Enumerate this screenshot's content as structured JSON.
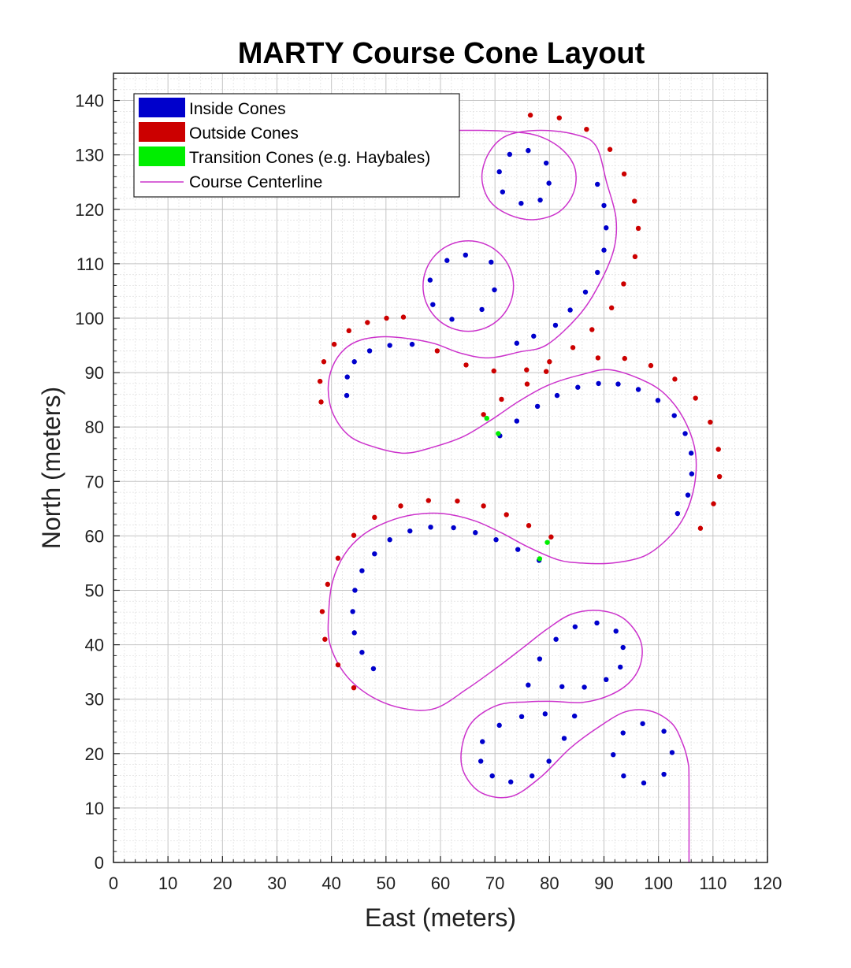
{
  "chart_data": {
    "type": "scatter",
    "title": "MARTY Course Cone Layout",
    "xlabel": "East (meters)",
    "ylabel": "North (meters)",
    "xlim": [
      0,
      120
    ],
    "ylim": [
      0,
      145
    ],
    "xticks": [
      0,
      10,
      20,
      30,
      40,
      50,
      60,
      70,
      80,
      90,
      100,
      110,
      120
    ],
    "yticks": [
      0,
      10,
      20,
      30,
      40,
      50,
      60,
      70,
      80,
      90,
      100,
      110,
      120,
      130,
      140
    ],
    "grid": "major and minor",
    "legend_position": "top-left",
    "colors": {
      "inside": "#0000cc",
      "outside": "#cc0000",
      "transition": "#00ee00",
      "centerline": "#cc33cc"
    },
    "series": [
      {
        "name": "Inside Cones",
        "marker": "dot",
        "points": [
          [
            70.8,
            126.9
          ],
          [
            72.7,
            130.1
          ],
          [
            76.1,
            130.8
          ],
          [
            79.4,
            128.5
          ],
          [
            79.9,
            124.8
          ],
          [
            78.3,
            121.7
          ],
          [
            74.8,
            121.1
          ],
          [
            71.4,
            123.2
          ],
          [
            64.6,
            111.6
          ],
          [
            61.2,
            110.6
          ],
          [
            58.1,
            107.0
          ],
          [
            58.6,
            102.5
          ],
          [
            62.1,
            99.8
          ],
          [
            67.6,
            101.6
          ],
          [
            69.9,
            105.2
          ],
          [
            69.3,
            110.3
          ],
          [
            88.8,
            124.6
          ],
          [
            90.0,
            120.7
          ],
          [
            90.4,
            116.6
          ],
          [
            90.0,
            112.5
          ],
          [
            88.8,
            108.4
          ],
          [
            86.6,
            104.8
          ],
          [
            83.8,
            101.5
          ],
          [
            81.1,
            98.7
          ],
          [
            77.1,
            96.7
          ],
          [
            74.0,
            95.4
          ],
          [
            54.8,
            95.2
          ],
          [
            50.7,
            95.0
          ],
          [
            47.0,
            94.0
          ],
          [
            44.2,
            92.0
          ],
          [
            42.9,
            89.2
          ],
          [
            42.8,
            85.8
          ],
          [
            70.9,
            78.4
          ],
          [
            74.0,
            81.1
          ],
          [
            77.8,
            83.8
          ],
          [
            81.4,
            85.8
          ],
          [
            85.2,
            87.3
          ],
          [
            89.0,
            88.0
          ],
          [
            92.6,
            87.9
          ],
          [
            96.3,
            86.9
          ],
          [
            99.9,
            84.9
          ],
          [
            102.9,
            82.1
          ],
          [
            104.9,
            78.8
          ],
          [
            106.0,
            75.2
          ],
          [
            106.1,
            71.4
          ],
          [
            105.4,
            67.5
          ],
          [
            103.5,
            64.1
          ],
          [
            78.1,
            55.5
          ],
          [
            74.2,
            57.5
          ],
          [
            70.2,
            59.3
          ],
          [
            66.4,
            60.6
          ],
          [
            62.4,
            61.5
          ],
          [
            58.2,
            61.6
          ],
          [
            54.4,
            60.9
          ],
          [
            50.7,
            59.3
          ],
          [
            47.9,
            56.7
          ],
          [
            45.6,
            53.6
          ],
          [
            44.3,
            50.0
          ],
          [
            43.9,
            46.1
          ],
          [
            44.2,
            42.2
          ],
          [
            45.6,
            38.6
          ],
          [
            47.7,
            35.6
          ],
          [
            78.2,
            37.4
          ],
          [
            81.2,
            41.0
          ],
          [
            84.7,
            43.3
          ],
          [
            88.7,
            44.0
          ],
          [
            92.2,
            42.5
          ],
          [
            93.5,
            39.5
          ],
          [
            93.0,
            35.9
          ],
          [
            90.4,
            33.6
          ],
          [
            86.4,
            32.2
          ],
          [
            82.3,
            32.3
          ],
          [
            76.1,
            32.6
          ],
          [
            79.2,
            27.3
          ],
          [
            84.6,
            26.9
          ],
          [
            74.9,
            26.8
          ],
          [
            70.8,
            25.2
          ],
          [
            67.7,
            22.2
          ],
          [
            67.4,
            18.6
          ],
          [
            69.5,
            15.9
          ],
          [
            72.9,
            14.8
          ],
          [
            76.8,
            15.9
          ],
          [
            79.9,
            18.6
          ],
          [
            82.7,
            22.8
          ],
          [
            97.1,
            25.5
          ],
          [
            101.0,
            24.1
          ],
          [
            102.5,
            20.2
          ],
          [
            101.0,
            16.2
          ],
          [
            97.3,
            14.6
          ],
          [
            93.6,
            15.9
          ],
          [
            91.7,
            19.8
          ],
          [
            93.5,
            23.8
          ]
        ]
      },
      {
        "name": "Outside Cones",
        "marker": "dot",
        "points": [
          [
            76.5,
            137.3
          ],
          [
            81.8,
            136.8
          ],
          [
            86.8,
            134.7
          ],
          [
            91.1,
            131.0
          ],
          [
            93.7,
            126.5
          ],
          [
            95.6,
            121.5
          ],
          [
            96.3,
            116.5
          ],
          [
            95.7,
            111.3
          ],
          [
            93.6,
            106.3
          ],
          [
            91.4,
            101.9
          ],
          [
            87.8,
            97.9
          ],
          [
            84.3,
            94.6
          ],
          [
            80.0,
            92.0
          ],
          [
            75.8,
            90.5
          ],
          [
            53.2,
            100.2
          ],
          [
            50.1,
            100.0
          ],
          [
            46.6,
            99.2
          ],
          [
            43.2,
            97.7
          ],
          [
            40.5,
            95.2
          ],
          [
            38.6,
            92.0
          ],
          [
            37.9,
            88.4
          ],
          [
            38.1,
            84.6
          ],
          [
            59.4,
            94.0
          ],
          [
            64.7,
            91.4
          ],
          [
            69.8,
            90.3
          ],
          [
            75.9,
            87.9
          ],
          [
            79.4,
            90.2
          ],
          [
            88.9,
            92.7
          ],
          [
            93.8,
            92.6
          ],
          [
            98.6,
            91.3
          ],
          [
            103.0,
            88.8
          ],
          [
            106.8,
            85.3
          ],
          [
            109.5,
            80.9
          ],
          [
            111.0,
            75.9
          ],
          [
            111.2,
            70.9
          ],
          [
            110.1,
            65.9
          ],
          [
            107.7,
            61.4
          ],
          [
            67.9,
            82.3
          ],
          [
            71.2,
            85.1
          ],
          [
            80.3,
            59.8
          ],
          [
            76.2,
            61.9
          ],
          [
            72.1,
            63.9
          ],
          [
            67.9,
            65.5
          ],
          [
            63.1,
            66.4
          ],
          [
            57.8,
            66.5
          ],
          [
            52.7,
            65.5
          ],
          [
            47.9,
            63.4
          ],
          [
            44.1,
            60.1
          ],
          [
            41.2,
            55.9
          ],
          [
            39.3,
            51.1
          ],
          [
            38.3,
            46.1
          ],
          [
            38.8,
            41.0
          ],
          [
            41.2,
            36.3
          ],
          [
            44.1,
            32.1
          ]
        ]
      },
      {
        "name": "Transition Cones (e.g. Haybales)",
        "marker": "dot",
        "points": [
          [
            68.5,
            81.6
          ],
          [
            70.6,
            78.8
          ],
          [
            79.6,
            58.8
          ],
          [
            78.2,
            55.8
          ]
        ]
      },
      {
        "name": "Course Centerline",
        "marker": "line",
        "points": [
          [
            105.6,
            0
          ],
          [
            105.6,
            15
          ],
          [
            105.4,
            18.5
          ],
          [
            104.3,
            22.2
          ],
          [
            102.4,
            25.6
          ],
          [
            98.6,
            27.8
          ],
          [
            94.0,
            27.7
          ],
          [
            89.2,
            25.0
          ],
          [
            83.8,
            21.0
          ],
          [
            78.3,
            15.6
          ],
          [
            72.9,
            12.1
          ],
          [
            67.5,
            12.8
          ],
          [
            64.3,
            16.5
          ],
          [
            63.9,
            21.0
          ],
          [
            65.8,
            25.8
          ],
          [
            70.5,
            28.9
          ],
          [
            76.0,
            29.5
          ],
          [
            80.6,
            29.6
          ],
          [
            86.0,
            29.4
          ],
          [
            91.0,
            30.7
          ],
          [
            94.8,
            33.2
          ],
          [
            96.8,
            36.8
          ],
          [
            96.6,
            41.0
          ],
          [
            93.5,
            44.9
          ],
          [
            88.9,
            46.3
          ],
          [
            84.0,
            45.6
          ],
          [
            79.6,
            42.9
          ],
          [
            75.2,
            39.5
          ],
          [
            70.5,
            35.9
          ],
          [
            64.9,
            31.9
          ],
          [
            59.0,
            28.3
          ],
          [
            53.2,
            28.3
          ],
          [
            47.3,
            30.5
          ],
          [
            42.5,
            34.6
          ],
          [
            39.7,
            40.2
          ],
          [
            39.5,
            46.0
          ],
          [
            40.2,
            51.6
          ],
          [
            42.4,
            56.6
          ],
          [
            45.8,
            60.2
          ],
          [
            50.3,
            62.6
          ],
          [
            55.1,
            63.9
          ],
          [
            60.4,
            64.1
          ],
          [
            66.2,
            62.8
          ],
          [
            71.1,
            60.6
          ],
          [
            76.2,
            57.9
          ],
          [
            81.6,
            55.6
          ],
          [
            86.0,
            55.0
          ],
          [
            91.5,
            55.0
          ],
          [
            97.4,
            56.3
          ],
          [
            101.8,
            59.6
          ],
          [
            104.8,
            63.7
          ],
          [
            106.6,
            69.3
          ],
          [
            106.8,
            75.2
          ],
          [
            105.2,
            80.4
          ],
          [
            102.2,
            85.0
          ],
          [
            98.2,
            88.1
          ],
          [
            91.3,
            90.5
          ],
          [
            85.8,
            89.6
          ],
          [
            79.8,
            87.7
          ],
          [
            74.5,
            84.8
          ],
          [
            69.3,
            81.3
          ],
          [
            64.1,
            78.2
          ],
          [
            58.3,
            76.2
          ],
          [
            53.5,
            75.2
          ],
          [
            48.6,
            76.1
          ],
          [
            43.5,
            78.2
          ],
          [
            40.4,
            82.2
          ],
          [
            39.4,
            86.9
          ],
          [
            40.2,
            91.1
          ],
          [
            42.4,
            94.3
          ],
          [
            45.4,
            96.0
          ],
          [
            49.8,
            96.6
          ],
          [
            54.5,
            96.2
          ],
          [
            59.0,
            95.3
          ],
          [
            63.6,
            93.6
          ],
          [
            68.8,
            92.7
          ],
          [
            74.5,
            93.8
          ],
          [
            79.5,
            95.1
          ],
          [
            85.3,
            100.4
          ],
          [
            89.0,
            106.0
          ],
          [
            91.8,
            112.6
          ],
          [
            92.2,
            118.4
          ],
          [
            90.5,
            124.9
          ],
          [
            88.5,
            131.7
          ],
          [
            84.5,
            133.8
          ],
          [
            78.0,
            134.5
          ],
          [
            72.1,
            133.5
          ],
          [
            68.9,
            130.4
          ],
          [
            67.6,
            125.9
          ],
          [
            69.0,
            121.6
          ],
          [
            72.6,
            119.0
          ],
          [
            77.2,
            118.1
          ],
          [
            81.7,
            119.5
          ],
          [
            84.4,
            123.0
          ],
          [
            84.7,
            127.4
          ],
          [
            82.3,
            131.0
          ],
          [
            77.9,
            133.5
          ],
          [
            72.6,
            134.3
          ],
          [
            67.4,
            134.5
          ],
          [
            60.0,
            134.5
          ],
          [
            52.0,
            134.5
          ]
        ],
        "loop_circle": {
          "cx": 65.1,
          "cy": 105.9,
          "r": 8.3
        }
      }
    ]
  }
}
